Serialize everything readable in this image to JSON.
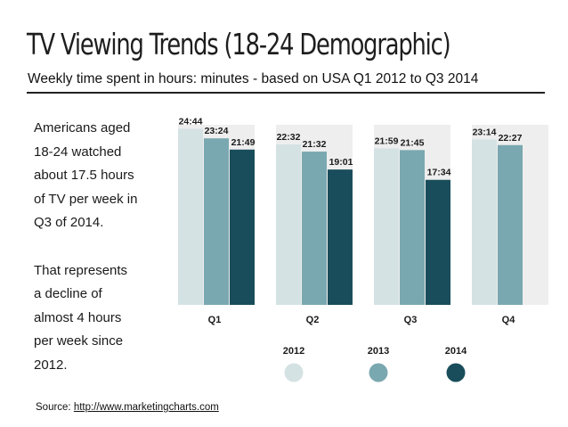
{
  "title": "TV Viewing Trends (18-24 Demographic)",
  "subtitle": "Weekly time spent in hours: minutes - based on USA Q1 2012 to Q3 2014",
  "side_text": [
    "Americans aged\n18-24 watched\nabout 17.5 hours\nof TV per week in\nQ3 of 2014.",
    "That represents\na decline of\nalmost 4 hours\nper week since\n2012."
  ],
  "source": {
    "label": "Source: ",
    "link": "http://www.marketingcharts.com"
  },
  "colors": {
    "2012": "#d4e2e4",
    "2013": "#7aa8b0",
    "2014": "#1a4d5b",
    "panel": "#eeeeee"
  },
  "chart_data": {
    "type": "bar",
    "categories": [
      "Q1",
      "Q2",
      "Q3",
      "Q4"
    ],
    "series": [
      {
        "name": "2012",
        "values": [
          24.733,
          22.533,
          21.983,
          23.233
        ],
        "labels": [
          "24:44",
          "22:32",
          "21:59",
          "23:14"
        ]
      },
      {
        "name": "2013",
        "values": [
          23.4,
          21.533,
          21.75,
          22.45
        ],
        "labels": [
          "23:24",
          "21:32",
          "21:45",
          "22:27"
        ]
      },
      {
        "name": "2014",
        "values": [
          21.817,
          19.017,
          17.567,
          null
        ],
        "labels": [
          "21:49",
          "19:01",
          "17:34",
          ""
        ]
      }
    ],
    "ylim": [
      0,
      25
    ],
    "legend_position": "bottom"
  }
}
